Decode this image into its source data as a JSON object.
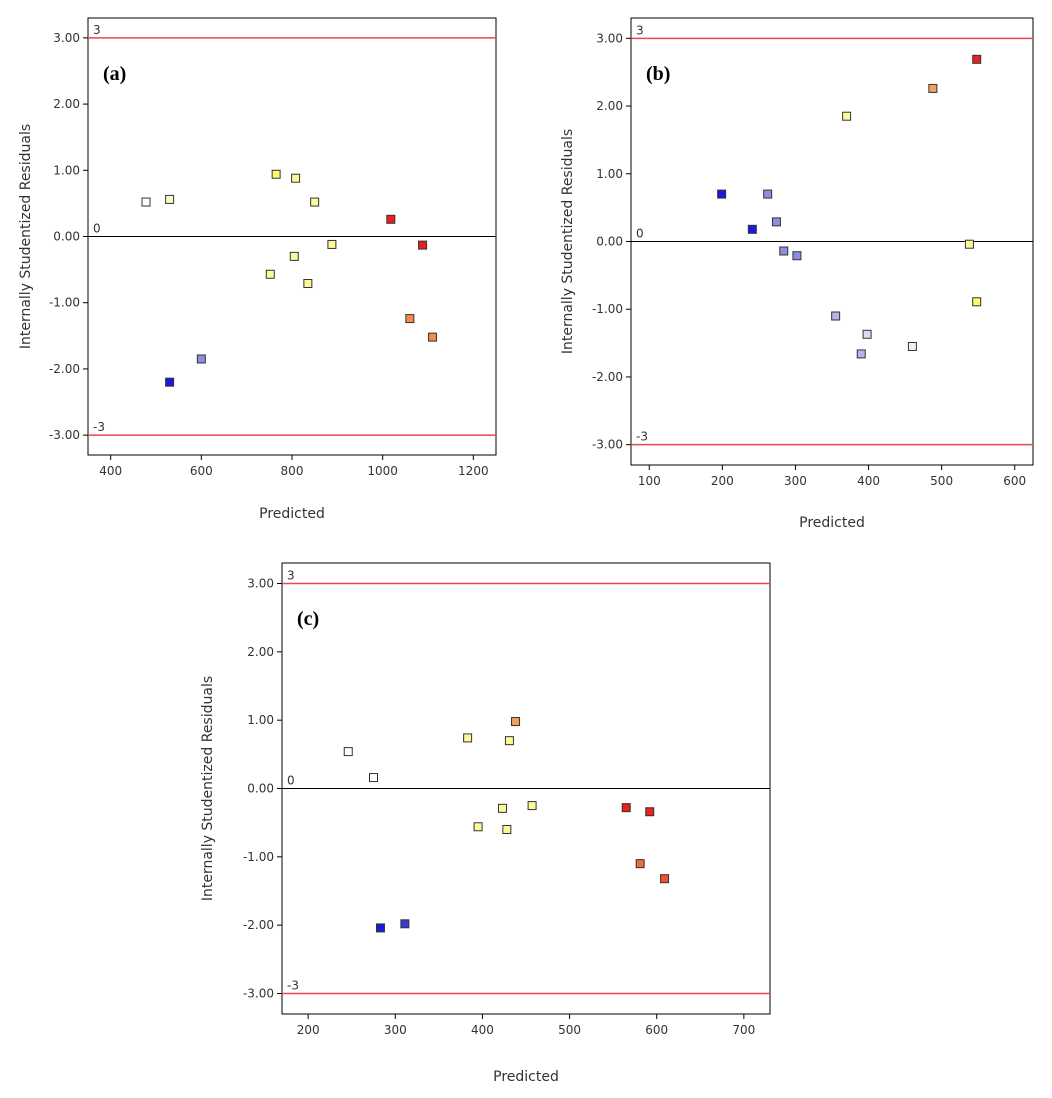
{
  "colors": {
    "ref_line": "#e8474c",
    "zero_line": "#000000",
    "frame": "#000000",
    "marker_stroke": "#333333"
  },
  "chart_data": [
    {
      "type": "scatter",
      "panel_label": "(a)",
      "xlabel": "Predicted",
      "ylabel": "Internally Studentized Residuals",
      "xlim": [
        350,
        1250
      ],
      "ylim": [
        -3.3,
        3.3
      ],
      "x_ticks": [
        "400",
        "600",
        "800",
        "1000",
        "1200"
      ],
      "y_ticks": [
        "-3.00",
        "-2.00",
        "-1.00",
        "0.00",
        "1.00",
        "2.00",
        "3.00"
      ],
      "ref_lines": [
        {
          "value": 3,
          "label": "3",
          "kind": "limit"
        },
        {
          "value": 0,
          "label": "0",
          "kind": "zero"
        },
        {
          "value": -3,
          "label": "-3",
          "kind": "limit"
        }
      ],
      "points": [
        {
          "x": 478,
          "y": 0.52,
          "color": "#ffffff"
        },
        {
          "x": 530,
          "y": 0.56,
          "color": "#fdfdc8"
        },
        {
          "x": 530,
          "y": -2.2,
          "color": "#1a1adc"
        },
        {
          "x": 600,
          "y": -1.85,
          "color": "#8e8ee0"
        },
        {
          "x": 752,
          "y": -0.57,
          "color": "#fafa9a"
        },
        {
          "x": 765,
          "y": 0.94,
          "color": "#fafa6e"
        },
        {
          "x": 805,
          "y": -0.3,
          "color": "#fafa9a"
        },
        {
          "x": 808,
          "y": 0.88,
          "color": "#fafa9a"
        },
        {
          "x": 835,
          "y": -0.71,
          "color": "#fafa9a"
        },
        {
          "x": 850,
          "y": 0.52,
          "color": "#fafa9a"
        },
        {
          "x": 888,
          "y": -0.12,
          "color": "#fafa9a"
        },
        {
          "x": 1018,
          "y": 0.26,
          "color": "#e82020"
        },
        {
          "x": 1060,
          "y": -1.24,
          "color": "#f58a4a"
        },
        {
          "x": 1088,
          "y": -0.13,
          "color": "#e82020"
        },
        {
          "x": 1110,
          "y": -1.52,
          "color": "#f58a4a"
        }
      ]
    },
    {
      "type": "scatter",
      "panel_label": "(b)",
      "xlabel": "Predicted",
      "ylabel": "Internally Studentized Residuals",
      "xlim": [
        75,
        625
      ],
      "ylim": [
        -3.3,
        3.3
      ],
      "x_ticks": [
        "100",
        "200",
        "300",
        "400",
        "500",
        "600"
      ],
      "y_ticks": [
        "-3.00",
        "-2.00",
        "-1.00",
        "0.00",
        "1.00",
        "2.00",
        "3.00"
      ],
      "ref_lines": [
        {
          "value": 3,
          "label": "3",
          "kind": "limit"
        },
        {
          "value": 0,
          "label": "0",
          "kind": "zero"
        },
        {
          "value": -3,
          "label": "-3",
          "kind": "limit"
        }
      ],
      "points": [
        {
          "x": 199,
          "y": 0.7,
          "color": "#1a1adc"
        },
        {
          "x": 241,
          "y": 0.18,
          "color": "#1a1adc"
        },
        {
          "x": 262,
          "y": 0.7,
          "color": "#8e8ee0"
        },
        {
          "x": 274,
          "y": 0.29,
          "color": "#8e8ee0"
        },
        {
          "x": 284,
          "y": -0.14,
          "color": "#8e8ee0"
        },
        {
          "x": 302,
          "y": -0.21,
          "color": "#8e8ee0"
        },
        {
          "x": 355,
          "y": -1.1,
          "color": "#b4b4ea"
        },
        {
          "x": 370,
          "y": 1.85,
          "color": "#fafa9a"
        },
        {
          "x": 390,
          "y": -1.66,
          "color": "#b4b4ea"
        },
        {
          "x": 398,
          "y": -1.37,
          "color": "#dcdcf0"
        },
        {
          "x": 460,
          "y": -1.55,
          "color": "#f2f2e6"
        },
        {
          "x": 488,
          "y": 2.26,
          "color": "#f5a05a"
        },
        {
          "x": 538,
          "y": -0.04,
          "color": "#fafa9a"
        },
        {
          "x": 548,
          "y": -0.89,
          "color": "#fafa6e"
        },
        {
          "x": 548,
          "y": 2.69,
          "color": "#e82020"
        }
      ]
    },
    {
      "type": "scatter",
      "panel_label": "(c)",
      "xlabel": "Predicted",
      "ylabel": "Internally Studentized Residuals",
      "xlim": [
        170,
        730
      ],
      "ylim": [
        -3.3,
        3.3
      ],
      "x_ticks": [
        "200",
        "300",
        "400",
        "500",
        "600",
        "700"
      ],
      "y_ticks": [
        "-3.00",
        "-2.00",
        "-1.00",
        "0.00",
        "1.00",
        "2.00",
        "3.00"
      ],
      "ref_lines": [
        {
          "value": 3,
          "label": "3",
          "kind": "limit"
        },
        {
          "value": 0,
          "label": "0",
          "kind": "zero"
        },
        {
          "value": -3,
          "label": "-3",
          "kind": "limit"
        }
      ],
      "points": [
        {
          "x": 246,
          "y": 0.54,
          "color": "#ffffff"
        },
        {
          "x": 275,
          "y": 0.16,
          "color": "#ffffff"
        },
        {
          "x": 283,
          "y": -2.04,
          "color": "#1a1adc"
        },
        {
          "x": 311,
          "y": -1.98,
          "color": "#3a3adc"
        },
        {
          "x": 383,
          "y": 0.74,
          "color": "#fafa9a"
        },
        {
          "x": 395,
          "y": -0.56,
          "color": "#fafa9a"
        },
        {
          "x": 423,
          "y": -0.29,
          "color": "#fafa9a"
        },
        {
          "x": 428,
          "y": -0.6,
          "color": "#fafa9a"
        },
        {
          "x": 431,
          "y": 0.7,
          "color": "#fafa9a"
        },
        {
          "x": 438,
          "y": 0.98,
          "color": "#f5a05a"
        },
        {
          "x": 457,
          "y": -0.25,
          "color": "#fafa9a"
        },
        {
          "x": 565,
          "y": -0.28,
          "color": "#e82020"
        },
        {
          "x": 581,
          "y": -1.1,
          "color": "#f56a3a"
        },
        {
          "x": 592,
          "y": -0.34,
          "color": "#e82020"
        },
        {
          "x": 609,
          "y": -1.32,
          "color": "#f0502a"
        }
      ]
    }
  ]
}
